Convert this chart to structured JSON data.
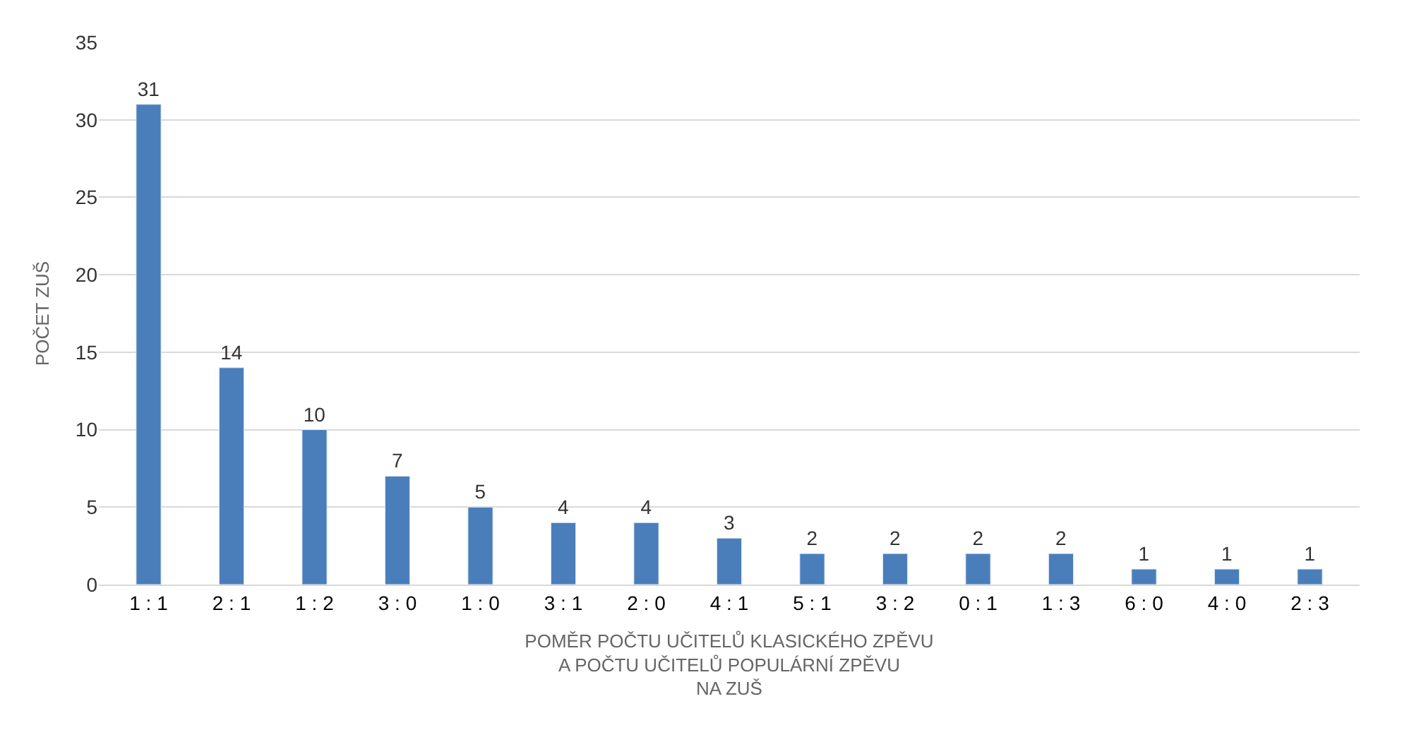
{
  "chart_data": {
    "type": "bar",
    "categories": [
      "1 : 1",
      "2 : 1",
      "1 : 2",
      "3 : 0",
      "1 : 0",
      "3 : 1",
      "2 : 0",
      "4 : 1",
      "5 : 1",
      "3 : 2",
      "0 : 1",
      "1 : 3",
      "6 : 0",
      "4 : 0",
      "2 : 3"
    ],
    "values": [
      31,
      14,
      10,
      7,
      5,
      4,
      4,
      3,
      2,
      2,
      2,
      2,
      1,
      1,
      1
    ],
    "color": "#4a7ebb",
    "ylabel": "POČET ZUŠ",
    "xlabel": "POMĚR POČTU UČITELŮ KLASICKÉHO ZPĚVU\nA POČTU UČITELŮ POPULÁRNÍ ZPĚVU\nNA ZUŠ",
    "ylim": [
      0,
      35
    ],
    "yticks": [
      0,
      5,
      10,
      15,
      20,
      25,
      30,
      35
    ],
    "grid": "y",
    "data_labels": true,
    "legend": false
  }
}
